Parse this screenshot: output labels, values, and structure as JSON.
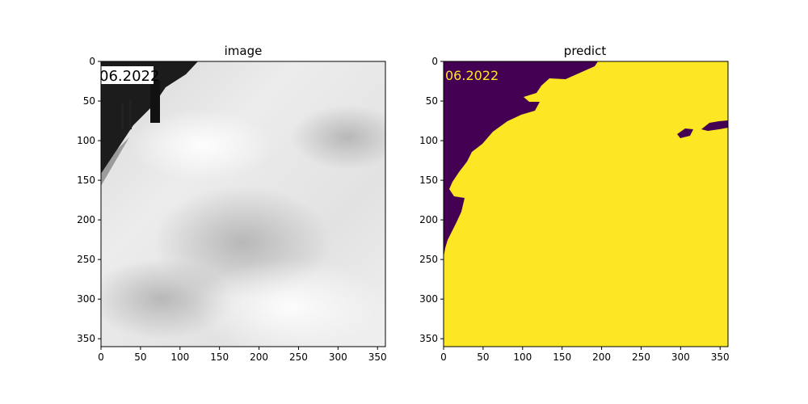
{
  "figure": {
    "background": "#ffffff"
  },
  "chart_data": [
    {
      "type": "image",
      "title": "image",
      "xlim": [
        0,
        360
      ],
      "ylim": [
        360,
        0
      ],
      "xticks": [
        0,
        50,
        100,
        150,
        200,
        250,
        300,
        350
      ],
      "yticks": [
        0,
        50,
        100,
        150,
        200,
        250,
        300,
        350
      ],
      "overlay_text": "06.2022",
      "colors": {
        "sky": "#e6e6e6",
        "dark": "#1a1a1a"
      }
    },
    {
      "type": "heatmap",
      "title": "predict",
      "xlim": [
        0,
        360
      ],
      "ylim": [
        360,
        0
      ],
      "xticks": [
        0,
        50,
        100,
        150,
        200,
        250,
        300,
        350
      ],
      "yticks": [
        0,
        50,
        100,
        150,
        200,
        250,
        300,
        350
      ],
      "overlay_text": "06.2022",
      "classes": [
        {
          "value": 0,
          "color": "#440154"
        },
        {
          "value": 1,
          "color": "#fde725"
        }
      ]
    }
  ]
}
